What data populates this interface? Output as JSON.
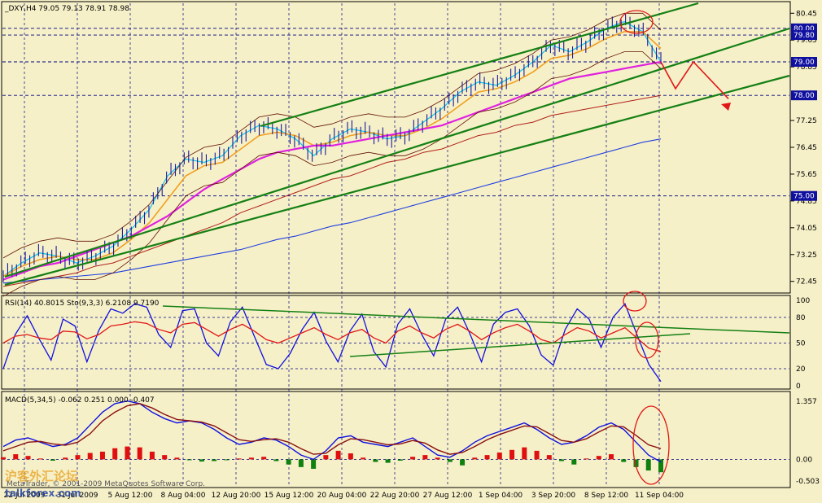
{
  "colors": {
    "background": "#f6f0c8",
    "candle": "#1a1aa0",
    "ema_fast": "#19c8e6",
    "ema_slow": "#f0a020",
    "sma_mid": "#e020e0",
    "sma_long": "#b0201a",
    "sma_very_long": "#2040e0",
    "bands": "#601000",
    "channel": "#148014",
    "forecast": "#e01818",
    "rsi_line": "#1010e0",
    "stoch_line": "#e01818",
    "macd_pos": "#e01010",
    "macd_neg": "#108010",
    "label_box": "#1010a0",
    "grid": "#000080"
  },
  "header": {
    "main": "_DXY,H4  79.05 79.13 78.91 78.98",
    "rsi": "RSI(14) 40.8015  Sto(9,3,3) 6.2108 9.7190",
    "macd": "MACD(5,34,5) -0.062 0.251 0.000 -0.407"
  },
  "watermark": {
    "copyright": "MetaTrader, © 2001-2009 MetaQuotes Software Corp.",
    "logo_text": "沪客外汇论坛",
    "site": "talkforex.com"
  },
  "chart_data": [
    {
      "type": "line",
      "title": "_DXY,H4",
      "ohlc_last": {
        "open": 79.05,
        "high": 79.13,
        "low": 78.91,
        "close": 78.98
      },
      "y_ticks": [
        "80.45",
        "79.65",
        "78.85",
        "77.25",
        "76.45",
        "75.65",
        "74.85",
        "74.05",
        "73.25",
        "72.45"
      ],
      "y_ticks_values": [
        80.45,
        79.65,
        78.85,
        77.25,
        76.45,
        75.65,
        74.85,
        74.05,
        73.25,
        72.45
      ],
      "price_levels": [
        {
          "label": "80.00",
          "value": 80.0
        },
        {
          "label": "79.80",
          "value": 79.8
        },
        {
          "label": "79.00",
          "value": 79.0
        },
        {
          "label": "78.00",
          "value": 78.0
        },
        {
          "label": "75.00",
          "value": 75.0
        }
      ],
      "ylim": [
        72.2,
        80.7
      ],
      "x_ticks": [
        "22 Jul 2009",
        "31 Jul 2009",
        "5 Aug 12:00",
        "8 Aug 04:00",
        "12 Aug 20:00",
        "15 Aug 12:00",
        "20 Aug 04:00",
        "22 Aug 20:00",
        "27 Aug 12:00",
        "1 Sep 04:00",
        "3 Sep 20:00",
        "8 Sep 12:00",
        "11 Sep 04:00"
      ],
      "series": [
        {
          "values": [
            72.6,
            73.0,
            73.3,
            73.2,
            73.0,
            73.2,
            73.5,
            74.0,
            74.6,
            75.6,
            76.1,
            76.0,
            76.2,
            76.8,
            77.1,
            77.0,
            76.7,
            76.2,
            76.7,
            77.0,
            76.9,
            76.7,
            76.8,
            77.2,
            77.6,
            78.1,
            78.4,
            78.3,
            78.6,
            79.0,
            79.5,
            79.3,
            79.6,
            80.0,
            80.2,
            79.9,
            79.0
          ]
        },
        {
          "values": [
            72.6,
            72.9,
            73.1,
            73.2,
            73.1,
            73.1,
            73.3,
            73.7,
            74.2,
            74.9,
            75.6,
            75.9,
            76.0,
            76.4,
            76.8,
            76.9,
            76.8,
            76.5,
            76.6,
            76.8,
            76.9,
            76.8,
            76.8,
            77.0,
            77.3,
            77.7,
            78.1,
            78.2,
            78.4,
            78.7,
            79.1,
            79.2,
            79.4,
            79.7,
            79.9,
            79.9,
            79.4
          ]
        },
        {
          "values": [
            72.5,
            72.7,
            72.9,
            73.0,
            73.2,
            73.4,
            73.6,
            73.8,
            74.1,
            74.4,
            74.8,
            75.2,
            75.5,
            75.8,
            76.1,
            76.3,
            76.4,
            76.5,
            76.5,
            76.6,
            76.7,
            76.8,
            76.9,
            77.0,
            77.1,
            77.3,
            77.5,
            77.7,
            77.9,
            78.1,
            78.3,
            78.5,
            78.6,
            78.7,
            78.8,
            78.9,
            79.0
          ]
        },
        {
          "values": [
            72.3,
            72.4,
            72.5,
            72.6,
            72.7,
            72.9,
            73.0,
            73.2,
            73.4,
            73.6,
            73.8,
            74.0,
            74.2,
            74.5,
            74.7,
            74.9,
            75.1,
            75.3,
            75.5,
            75.6,
            75.8,
            76.0,
            76.1,
            76.3,
            76.4,
            76.6,
            76.8,
            76.9,
            77.1,
            77.2,
            77.4,
            77.5,
            77.6,
            77.7,
            77.8,
            77.9,
            78.0
          ]
        },
        {
          "values": [
            72.4,
            72.45,
            72.5,
            72.55,
            72.6,
            72.65,
            72.7,
            72.8,
            72.9,
            73.0,
            73.1,
            73.2,
            73.3,
            73.4,
            73.55,
            73.7,
            73.8,
            73.95,
            74.1,
            74.2,
            74.35,
            74.5,
            74.65,
            74.8,
            74.95,
            75.1,
            75.25,
            75.4,
            75.55,
            75.7,
            75.85,
            76.0,
            76.15,
            76.3,
            76.45,
            76.6,
            76.7
          ]
        }
      ],
      "forecast": [
        79.0,
        78.2,
        79.0,
        77.9
      ],
      "grid": true
    },
    {
      "type": "line",
      "title": "RSI(14) 40.8015  Sto(9,3,3) 6.2108 9.7190",
      "y_ticks": [
        "100",
        "80",
        "50",
        "20",
        "0"
      ],
      "y_ticks_values": [
        100,
        80,
        50,
        20,
        0
      ],
      "ylim": [
        0,
        100
      ],
      "series": [
        {
          "values": [
            20,
            60,
            82,
            55,
            30,
            78,
            70,
            28,
            65,
            90,
            85,
            96,
            92,
            60,
            45,
            88,
            90,
            50,
            35,
            75,
            92,
            58,
            25,
            20,
            38,
            66,
            86,
            52,
            28,
            64,
            84,
            40,
            22,
            72,
            90,
            60,
            35,
            78,
            92,
            62,
            28,
            72,
            86,
            90,
            70,
            36,
            24,
            66,
            90,
            78,
            45,
            80,
            96,
            60,
            25,
            5
          ]
        },
        {
          "values": [
            50,
            58,
            60,
            56,
            54,
            64,
            63,
            55,
            60,
            70,
            72,
            75,
            73,
            66,
            62,
            72,
            74,
            66,
            58,
            66,
            72,
            64,
            54,
            50,
            56,
            62,
            68,
            60,
            54,
            62,
            66,
            56,
            50,
            64,
            70,
            62,
            56,
            66,
            72,
            64,
            54,
            62,
            68,
            72,
            64,
            54,
            50,
            60,
            68,
            64,
            56,
            62,
            68,
            56,
            44,
            40
          ]
        }
      ],
      "grid": true
    },
    {
      "type": "bar",
      "title": "MACD(5,34,5) -0.062 0.251 0.000 -0.407",
      "values_main": -0.062,
      "values_signal": 0.251,
      "y_ticks": [
        "1.357",
        "0.00",
        "-0.503"
      ],
      "y_ticks_values": [
        1.357,
        0.0,
        -0.503
      ],
      "ylim": [
        -0.6,
        1.45
      ],
      "histogram": [
        0.05,
        0.12,
        0.08,
        0.02,
        -0.03,
        0.04,
        0.1,
        0.15,
        0.18,
        0.26,
        0.3,
        0.28,
        0.18,
        0.1,
        0.04,
        -0.02,
        -0.05,
        -0.04,
        -0.02,
        0.02,
        0.04,
        0.06,
        -0.04,
        -0.12,
        -0.18,
        -0.22,
        0.1,
        0.2,
        0.14,
        0.04,
        -0.06,
        -0.08,
        -0.03,
        0.06,
        0.1,
        0.04,
        -0.06,
        -0.14,
        0.04,
        0.1,
        0.16,
        0.22,
        0.28,
        0.2,
        0.1,
        -0.04,
        -0.12,
        0.02,
        0.08,
        0.12,
        -0.06,
        -0.18,
        -0.26,
        -0.3
      ],
      "macd_line": [
        0.3,
        0.45,
        0.5,
        0.4,
        0.3,
        0.35,
        0.5,
        0.8,
        1.1,
        1.3,
        1.36,
        1.3,
        1.1,
        0.95,
        0.85,
        0.9,
        0.85,
        0.7,
        0.5,
        0.35,
        0.4,
        0.5,
        0.45,
        0.3,
        0.1,
        0.0,
        0.2,
        0.5,
        0.55,
        0.4,
        0.35,
        0.3,
        0.4,
        0.5,
        0.3,
        0.1,
        0.05,
        0.2,
        0.4,
        0.55,
        0.65,
        0.75,
        0.85,
        0.7,
        0.5,
        0.35,
        0.4,
        0.55,
        0.75,
        0.85,
        0.7,
        0.4,
        0.1,
        -0.06
      ],
      "signal_line": [
        0.2,
        0.3,
        0.4,
        0.42,
        0.36,
        0.33,
        0.4,
        0.6,
        0.9,
        1.1,
        1.25,
        1.3,
        1.2,
        1.05,
        0.93,
        0.9,
        0.87,
        0.78,
        0.62,
        0.46,
        0.42,
        0.46,
        0.48,
        0.4,
        0.25,
        0.12,
        0.14,
        0.34,
        0.48,
        0.46,
        0.4,
        0.34,
        0.36,
        0.44,
        0.38,
        0.22,
        0.12,
        0.16,
        0.3,
        0.46,
        0.58,
        0.68,
        0.78,
        0.76,
        0.6,
        0.44,
        0.4,
        0.48,
        0.64,
        0.78,
        0.76,
        0.56,
        0.34,
        0.25
      ],
      "grid": true
    }
  ]
}
